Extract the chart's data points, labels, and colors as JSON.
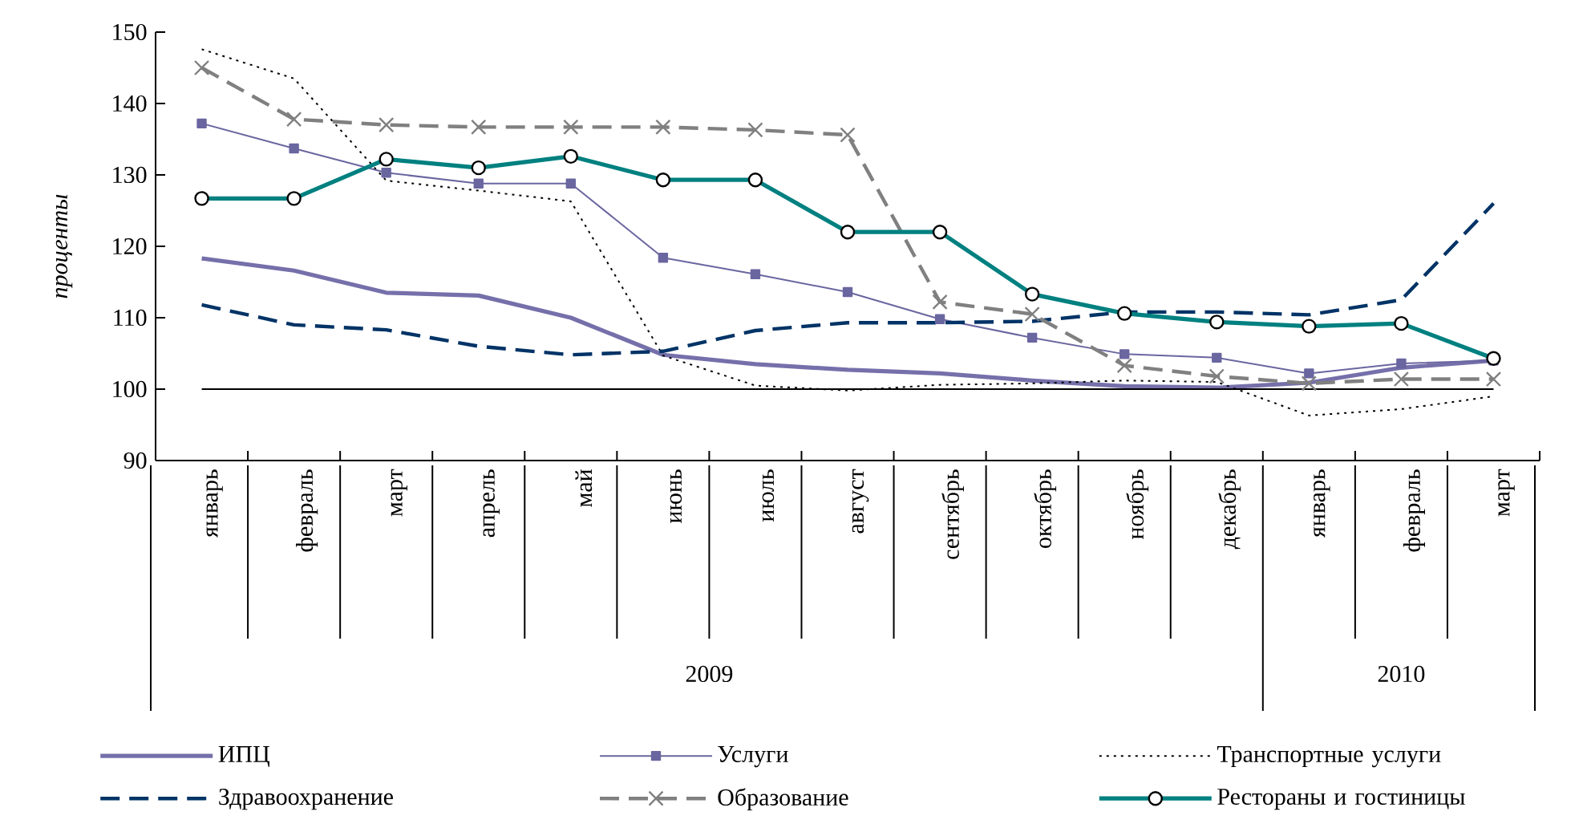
{
  "chart_data": {
    "type": "line",
    "ylabel": "*проценты*",
    "categories": [
      "январь",
      "февраль",
      "март",
      "апрель",
      "май",
      "июнь",
      "июль",
      "август",
      "сентябрь",
      "октябрь",
      "ноябрь",
      "декабрь",
      "январь",
      "февраль",
      "март"
    ],
    "annotations": [
      "2009",
      "2010"
    ],
    "ylim": [
      90,
      150
    ],
    "yticks": [
      90,
      100,
      110,
      120,
      130,
      140,
      150
    ],
    "ref_lines": [
      {
        "axis": "y",
        "value": 100,
        "color": "#000000"
      }
    ],
    "legend": "bottom",
    "series": [
      {
        "name": "ИПЦ",
        "color": "#7570aa",
        "marker": "none",
        "line_style": "solid",
        "values": [
          118.3,
          116.6,
          113.5,
          113.1,
          110.0,
          104.8,
          103.5,
          102.7,
          102.2,
          101.2,
          100.4,
          100.2,
          100.9,
          103.0,
          104.0
        ]
      },
      {
        "name": "Услуги",
        "color": "#6a66a0",
        "marker": "square",
        "line_style": "solid",
        "values": [
          137.2,
          133.7,
          130.3,
          128.8,
          128.8,
          118.4,
          116.1,
          113.6,
          109.8,
          107.2,
          104.9,
          104.4,
          102.2,
          103.6,
          104.0
        ]
      },
      {
        "name": "Транспортные услуги",
        "color": "#000000",
        "marker": "none",
        "line_style": "dotted",
        "values": [
          147.6,
          143.5,
          129.2,
          127.8,
          126.3,
          104.7,
          100.5,
          99.8,
          100.6,
          100.8,
          101.2,
          101.0,
          96.3,
          97.2,
          99.0
        ]
      },
      {
        "name": "Здравоохранение",
        "color": "#003366",
        "marker": "none",
        "line_style": "dashed",
        "values": [
          111.8,
          109.0,
          108.3,
          106.0,
          104.8,
          105.3,
          108.2,
          109.3,
          109.3,
          109.5,
          110.8,
          110.8,
          110.4,
          112.5,
          126.0
        ]
      },
      {
        "name": "Образование",
        "color": "#808080",
        "marker": "cross",
        "line_style": "dashed",
        "values": [
          145.0,
          137.8,
          137.0,
          136.7,
          136.7,
          136.7,
          136.3,
          135.6,
          112.2,
          110.5,
          103.3,
          101.8,
          100.8,
          101.4,
          101.4
        ]
      },
      {
        "name": "Рестораны и гостиницы",
        "color": "#008080",
        "marker": "circle",
        "line_style": "solid",
        "values": [
          126.7,
          126.7,
          132.2,
          131.0,
          132.6,
          129.3,
          129.3,
          122.0,
          122.0,
          113.3,
          110.6,
          109.4,
          108.8,
          109.2,
          104.3
        ]
      }
    ]
  }
}
